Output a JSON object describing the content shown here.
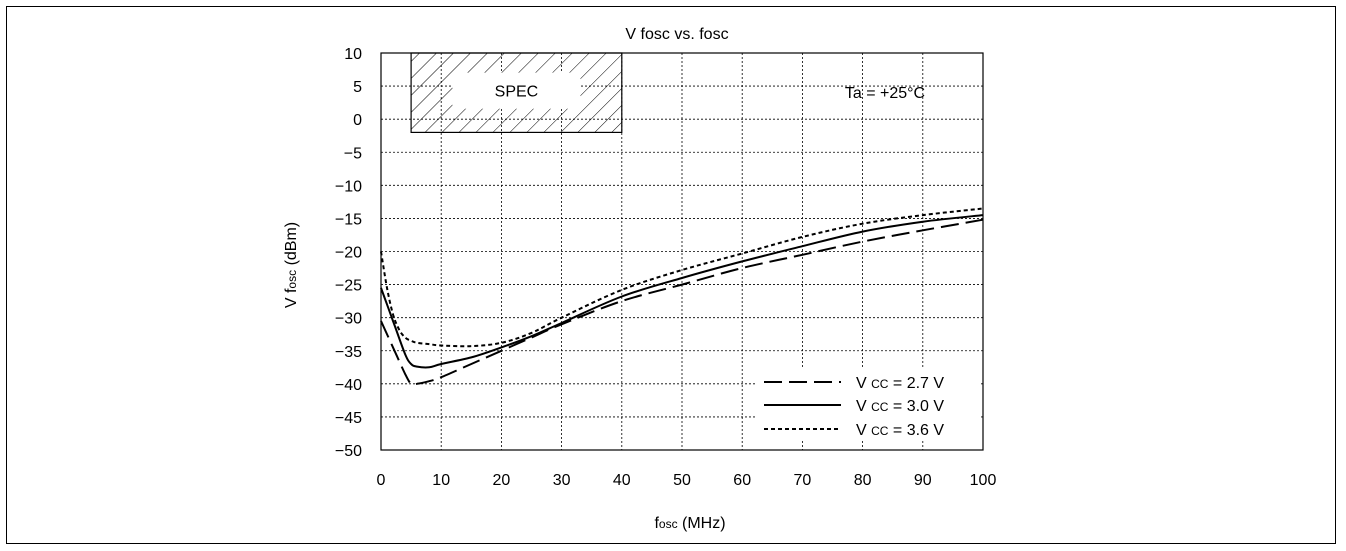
{
  "chart_data": {
    "type": "line",
    "title": "V fosc vs. fosc",
    "xlabel": {
      "main": "f",
      "sub": "osc",
      "unit": " (MHz)"
    },
    "ylabel": {
      "main": "V f",
      "sub": "osc",
      "unit": " (dBm)"
    },
    "xlim": [
      0,
      100
    ],
    "ylim": [
      -50,
      10
    ],
    "x_ticks": [
      0,
      10,
      20,
      30,
      40,
      50,
      60,
      70,
      80,
      90,
      100
    ],
    "y_ticks": [
      10,
      5,
      0,
      -5,
      -10,
      -15,
      -20,
      -25,
      -30,
      -35,
      -40,
      -45,
      -50
    ],
    "x_tick_labels": [
      "0",
      "10",
      "20",
      "30",
      "40",
      "50",
      "60",
      "70",
      "80",
      "90",
      "100"
    ],
    "y_tick_labels": [
      "10",
      "5",
      "0",
      "−5",
      "−10",
      "−15",
      "−20",
      "−25",
      "−30",
      "−35",
      "−40",
      "−45",
      "−50"
    ],
    "grid": true,
    "legend_position": "bottom-right",
    "annotation": "Ta = +25°C",
    "spec_region": {
      "label": "SPEC",
      "x": [
        5,
        40
      ],
      "y": [
        -2,
        10
      ]
    },
    "series": [
      {
        "name": "V CC = 2.7 V",
        "legend": {
          "prefix": "V ",
          "sub": "CC",
          "suffix": " = 2.7 V"
        },
        "style": "dashed",
        "x": [
          0,
          2,
          4,
          5,
          6,
          8,
          10,
          15,
          20,
          25,
          30,
          40,
          50,
          60,
          70,
          80,
          90,
          100
        ],
        "y": [
          -30.5,
          -34.5,
          -38.5,
          -40,
          -40,
          -39.6,
          -39,
          -37,
          -35,
          -33,
          -31,
          -27.5,
          -25,
          -22.5,
          -20.5,
          -18.5,
          -16.8,
          -15.2
        ]
      },
      {
        "name": "V CC = 3.0 V",
        "legend": {
          "prefix": "V ",
          "sub": "CC",
          "suffix": " = 3.0 V"
        },
        "style": "solid",
        "x": [
          0,
          2,
          4,
          5,
          6,
          8,
          10,
          15,
          20,
          25,
          30,
          40,
          50,
          60,
          70,
          80,
          90,
          100
        ],
        "y": [
          -25.5,
          -30.5,
          -35.5,
          -37,
          -37.4,
          -37.5,
          -37,
          -36,
          -34.5,
          -32.8,
          -30.8,
          -26.8,
          -24,
          -21.5,
          -19.2,
          -17,
          -15.5,
          -14.5
        ]
      },
      {
        "name": "V CC = 3.6 V",
        "legend": {
          "prefix": "V ",
          "sub": "CC",
          "suffix": " = 3.6 V"
        },
        "style": "dotted",
        "x": [
          0,
          1,
          2,
          3,
          4,
          5,
          6,
          8,
          10,
          15,
          20,
          25,
          30,
          40,
          50,
          60,
          70,
          80,
          90,
          100
        ],
        "y": [
          -20,
          -25.5,
          -29.5,
          -31.8,
          -33,
          -33.5,
          -33.8,
          -34,
          -34.2,
          -34.3,
          -33.8,
          -32.3,
          -30,
          -25.8,
          -22.8,
          -20.3,
          -17.8,
          -15.8,
          -14.5,
          -13.5
        ]
      }
    ]
  }
}
